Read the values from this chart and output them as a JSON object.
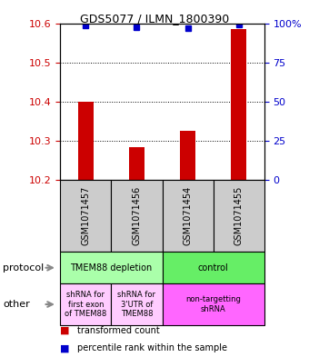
{
  "title": "GDS5077 / ILMN_1800390",
  "samples": [
    "GSM1071457",
    "GSM1071456",
    "GSM1071454",
    "GSM1071455"
  ],
  "bar_values": [
    10.4,
    10.285,
    10.325,
    10.585
  ],
  "bar_base": 10.2,
  "blue_dot_values": [
    98.5,
    97.5,
    97.0,
    99.0
  ],
  "ylim": [
    10.2,
    10.6
  ],
  "y_ticks": [
    10.2,
    10.3,
    10.4,
    10.5,
    10.6
  ],
  "y_right_ticks": [
    0,
    25,
    50,
    75,
    100
  ],
  "y_right_labels": [
    "0",
    "25",
    "50",
    "75",
    "100%"
  ],
  "bar_color": "#cc0000",
  "dot_color": "#0000cc",
  "sample_bg": "#cccccc",
  "protocol_row": [
    {
      "label": "TMEM88 depletion",
      "span": [
        0,
        2
      ],
      "color": "#aaffaa"
    },
    {
      "label": "control",
      "span": [
        2,
        4
      ],
      "color": "#66ee66"
    }
  ],
  "other_row": [
    {
      "label": "shRNA for\nfirst exon\nof TMEM88",
      "span": [
        0,
        1
      ],
      "color": "#ffccff"
    },
    {
      "label": "shRNA for\n3'UTR of\nTMEM88",
      "span": [
        1,
        2
      ],
      "color": "#ffccff"
    },
    {
      "label": "non-targetting\nshRNA",
      "span": [
        2,
        4
      ],
      "color": "#ff66ff"
    }
  ],
  "legend_red_label": "transformed count",
  "legend_blue_label": "percentile rank within the sample",
  "ax_left_color": "#cc0000",
  "ax_right_color": "#0000cc",
  "bg_color": "#ffffff"
}
